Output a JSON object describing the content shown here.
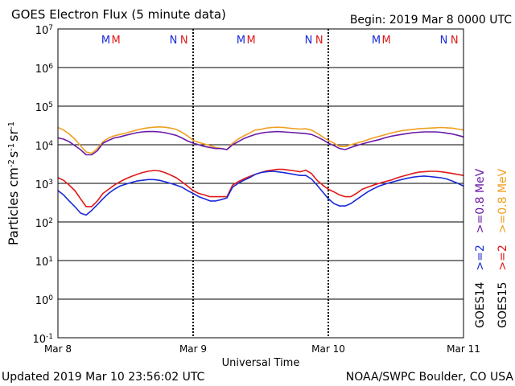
{
  "chart_data": {
    "type": "line",
    "title": "GOES Electron Flux (5 minute data)",
    "begin_label": "Begin: 2019 Mar 8 0000 UTC",
    "xlabel": "Universal Time",
    "ylabel_parts": [
      "Particles cm",
      "-2",
      "s",
      "-1",
      "sr",
      "-1"
    ],
    "x_unit": "hours since begin",
    "xlim": [
      0,
      72
    ],
    "x_ticks": [
      {
        "x": 0,
        "label": "Mar 8"
      },
      {
        "x": 24,
        "label": "Mar 9"
      },
      {
        "x": 48,
        "label": "Mar 10"
      },
      {
        "x": 72,
        "label": "Mar 11"
      }
    ],
    "y_scale": "log",
    "y_decades": [
      -1,
      0,
      1,
      2,
      3,
      4,
      5,
      6,
      7
    ],
    "y_tick_base": "10",
    "y_ticks": [
      "-1",
      "0",
      "1",
      "2",
      "3",
      "4",
      "5",
      "6",
      "7"
    ],
    "threshold": 1000,
    "markers": [
      {
        "label": "M",
        "x": 8.5,
        "color": "#1a2ad8"
      },
      {
        "label": "M",
        "x": 10.3,
        "color": "#e01818"
      },
      {
        "label": "N",
        "x": 20.5,
        "color": "#1a2ad8"
      },
      {
        "label": "N",
        "x": 22.4,
        "color": "#e01818"
      },
      {
        "label": "M",
        "x": 32.5,
        "color": "#1a2ad8"
      },
      {
        "label": "M",
        "x": 34.3,
        "color": "#e01818"
      },
      {
        "label": "N",
        "x": 44.5,
        "color": "#1a2ad8"
      },
      {
        "label": "N",
        "x": 46.4,
        "color": "#e01818"
      },
      {
        "label": "M",
        "x": 56.5,
        "color": "#1a2ad8"
      },
      {
        "label": "M",
        "x": 58.3,
        "color": "#e01818"
      },
      {
        "label": "N",
        "x": 68.5,
        "color": "#1a2ad8"
      },
      {
        "label": "N",
        "x": 70.4,
        "color": "#e01818"
      }
    ],
    "legend_right": [
      [
        {
          "text": "GOES14",
          "color": "#000000"
        },
        {
          "text": ">=2",
          "color": "#1a2ad8"
        },
        {
          "text": ">=0.8 MeV",
          "color": "#6a1aa8"
        }
      ],
      [
        {
          "text": "GOES15",
          "color": "#000000"
        },
        {
          "text": ">=2",
          "color": "#e01818"
        },
        {
          "text": ">=0.8 MeV",
          "color": "#f0a020"
        }
      ]
    ],
    "series": [
      {
        "key": "g15_08",
        "color": "#f0a020",
        "x": [
          0,
          1,
          2,
          3,
          4,
          5,
          6,
          7,
          8,
          9,
          10,
          11,
          12,
          13,
          14,
          15,
          16,
          17,
          18,
          19,
          20,
          21,
          22,
          23,
          24,
          25,
          26,
          27,
          28,
          29,
          30,
          31,
          32,
          33,
          34,
          35,
          36,
          37,
          38,
          39,
          40,
          41,
          42,
          43,
          44,
          45,
          46,
          47,
          48,
          49,
          50,
          51,
          52,
          53,
          54,
          55,
          56,
          57,
          58,
          59,
          60,
          61,
          62,
          63,
          64,
          65,
          66,
          67,
          68,
          69,
          70,
          71,
          72
        ],
        "y": [
          28000,
          24000,
          19000,
          14000,
          9500,
          6500,
          6000,
          8000,
          12000,
          15000,
          17000,
          18500,
          20000,
          22000,
          24000,
          26000,
          27500,
          28500,
          29000,
          28500,
          27000,
          25000,
          21000,
          17000,
          13000,
          11500,
          10500,
          9500,
          8500,
          8000,
          7500,
          11000,
          14000,
          17000,
          20000,
          24000,
          25000,
          27000,
          28000,
          28500,
          28000,
          27000,
          26000,
          25500,
          26000,
          24000,
          20000,
          16000,
          13000,
          11000,
          9000,
          9000,
          10000,
          11000,
          12000,
          13500,
          15000,
          16500,
          18000,
          20000,
          21500,
          23000,
          24000,
          25000,
          26000,
          26500,
          27000,
          27500,
          28000,
          27500,
          27000,
          25500,
          24000
        ]
      },
      {
        "key": "g14_08",
        "color": "#6a1aa8",
        "x": [
          0,
          1,
          2,
          3,
          4,
          5,
          6,
          7,
          8,
          9,
          10,
          11,
          12,
          13,
          14,
          15,
          16,
          17,
          18,
          19,
          20,
          21,
          22,
          23,
          24,
          25,
          26,
          27,
          28,
          29,
          30,
          31,
          32,
          33,
          34,
          35,
          36,
          37,
          38,
          39,
          40,
          41,
          42,
          43,
          44,
          45,
          46,
          47,
          48,
          49,
          50,
          51,
          52,
          53,
          54,
          55,
          56,
          57,
          58,
          59,
          60,
          61,
          62,
          63,
          64,
          65,
          66,
          67,
          68,
          69,
          70,
          71,
          72
        ],
        "y": [
          15000,
          14000,
          12000,
          9500,
          7500,
          5500,
          5500,
          7000,
          11000,
          13000,
          15000,
          16000,
          17500,
          19000,
          20500,
          21500,
          22000,
          22000,
          21500,
          20500,
          19000,
          17500,
          15000,
          12500,
          11000,
          10000,
          9000,
          8500,
          8000,
          8000,
          7500,
          10000,
          12000,
          14500,
          16500,
          18500,
          20000,
          21000,
          21500,
          22000,
          21500,
          21000,
          20500,
          20000,
          19500,
          18500,
          16000,
          13500,
          11000,
          9500,
          8000,
          7500,
          8500,
          9500,
          10500,
          11500,
          12500,
          13500,
          15000,
          16500,
          17500,
          18500,
          19500,
          20500,
          21000,
          21500,
          21500,
          21500,
          21000,
          20000,
          19000,
          17500,
          16000
        ]
      },
      {
        "key": "g15_2",
        "color": "#e01818",
        "x": [
          0,
          1,
          2,
          3,
          4,
          5,
          6,
          7,
          8,
          9,
          10,
          11,
          12,
          13,
          14,
          15,
          16,
          17,
          18,
          19,
          20,
          21,
          22,
          23,
          24,
          25,
          26,
          27,
          28,
          29,
          30,
          31,
          32,
          33,
          34,
          35,
          36,
          37,
          38,
          39,
          40,
          41,
          42,
          43,
          44,
          45,
          46,
          47,
          48,
          49,
          50,
          51,
          52,
          53,
          54,
          55,
          56,
          57,
          58,
          59,
          60,
          61,
          62,
          63,
          64,
          65,
          66,
          67,
          68,
          69,
          70,
          71,
          72
        ],
        "y": [
          1400,
          1200,
          900,
          650,
          400,
          250,
          250,
          350,
          550,
          700,
          900,
          1100,
          1300,
          1500,
          1700,
          1900,
          2050,
          2150,
          2100,
          1900,
          1650,
          1400,
          1100,
          850,
          650,
          550,
          500,
          450,
          450,
          450,
          450,
          900,
          1100,
          1300,
          1500,
          1700,
          1900,
          2100,
          2200,
          2300,
          2300,
          2200,
          2100,
          2000,
          2200,
          1800,
          1200,
          900,
          700,
          600,
          500,
          450,
          450,
          550,
          700,
          800,
          900,
          1000,
          1100,
          1200,
          1350,
          1500,
          1650,
          1800,
          1950,
          2000,
          2050,
          2050,
          2000,
          1900,
          1800,
          1700,
          1600
        ]
      },
      {
        "key": "g14_2",
        "color": "#1a2ad8",
        "x": [
          0,
          1,
          2,
          3,
          4,
          5,
          6,
          7,
          8,
          9,
          10,
          11,
          12,
          13,
          14,
          15,
          16,
          17,
          18,
          19,
          20,
          21,
          22,
          23,
          24,
          25,
          26,
          27,
          28,
          29,
          30,
          31,
          32,
          33,
          34,
          35,
          36,
          37,
          38,
          39,
          40,
          41,
          42,
          43,
          44,
          45,
          46,
          47,
          48,
          49,
          50,
          51,
          52,
          53,
          54,
          55,
          56,
          57,
          58,
          59,
          60,
          61,
          62,
          63,
          64,
          65,
          66,
          67,
          68,
          69,
          70,
          71,
          72
        ],
        "y": [
          650,
          500,
          350,
          250,
          170,
          150,
          200,
          280,
          400,
          550,
          700,
          850,
          950,
          1050,
          1150,
          1200,
          1250,
          1250,
          1200,
          1100,
          1000,
          900,
          800,
          650,
          550,
          450,
          400,
          350,
          350,
          380,
          420,
          800,
          1000,
          1200,
          1400,
          1700,
          1900,
          2000,
          2050,
          2000,
          1900,
          1800,
          1700,
          1600,
          1600,
          1300,
          900,
          600,
          400,
          300,
          260,
          260,
          300,
          380,
          480,
          600,
          720,
          850,
          950,
          1050,
          1150,
          1250,
          1350,
          1450,
          1500,
          1550,
          1500,
          1450,
          1400,
          1300,
          1150,
          1000,
          850
        ]
      }
    ]
  },
  "footer": {
    "updated": "Updated 2019 Mar 10 23:56:02 UTC",
    "credit": "NOAA/SWPC Boulder, CO USA"
  }
}
